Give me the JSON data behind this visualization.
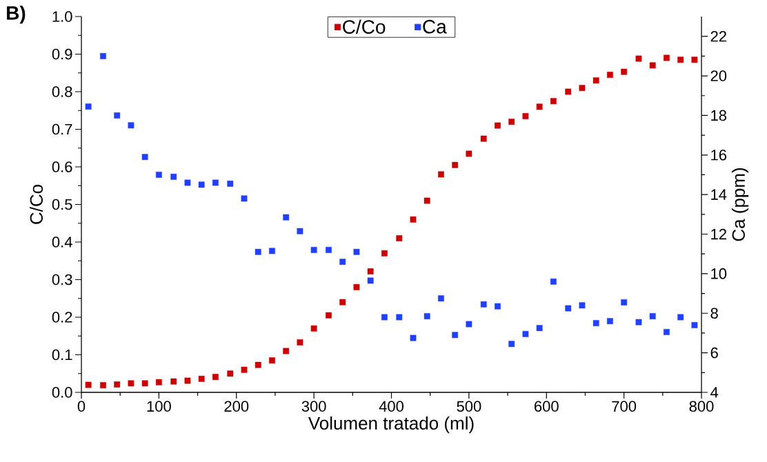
{
  "chart_data": {
    "type": "scatter",
    "xlabel": "Volumen tratado (ml)",
    "ylabel": "C/Co",
    "y2label": "Ca (ppm)",
    "annotations": [
      "B)"
    ],
    "x": [
      9,
      28,
      46,
      64,
      82,
      100,
      119,
      137,
      155,
      173,
      192,
      210,
      228,
      246,
      264,
      282,
      300,
      319,
      337,
      355,
      373,
      391,
      410,
      428,
      446,
      464,
      482,
      500,
      519,
      537,
      555,
      573,
      591,
      609,
      628,
      646,
      664,
      682,
      700,
      719,
      737,
      755,
      773,
      791
    ],
    "series": [
      {
        "name": "C/Co",
        "color": "#cc0000",
        "values": [
          0.02,
          0.019,
          0.021,
          0.024,
          0.024,
          0.027,
          0.029,
          0.031,
          0.036,
          0.041,
          0.05,
          0.06,
          0.073,
          0.085,
          0.11,
          0.133,
          0.17,
          0.205,
          0.24,
          0.28,
          0.322,
          0.37,
          0.41,
          0.46,
          0.51,
          0.58,
          0.605,
          0.635,
          0.675,
          0.71,
          0.72,
          0.735,
          0.76,
          0.775,
          0.8,
          0.81,
          0.83,
          0.845,
          0.853,
          0.888,
          0.87,
          0.89,
          0.885,
          0.885
        ]
      },
      {
        "name": "Ca",
        "color": "#2040ff",
        "axis": "y2",
        "values": [
          18.45,
          21.0,
          18.0,
          17.5,
          15.9,
          15.0,
          14.9,
          14.6,
          14.5,
          14.6,
          14.55,
          13.8,
          11.1,
          11.15,
          12.85,
          12.15,
          11.2,
          11.2,
          10.6,
          11.1,
          9.65,
          7.8,
          7.8,
          6.75,
          7.85,
          8.75,
          6.9,
          7.45,
          8.45,
          8.35,
          6.45,
          6.95,
          7.25,
          9.6,
          8.25,
          8.4,
          7.5,
          7.6,
          8.55,
          7.55,
          7.85,
          7.05,
          7.8,
          7.4
        ]
      }
    ],
    "marker": "square",
    "legend": "top",
    "xlim": [
      0,
      800
    ],
    "xticks": [
      0,
      100,
      200,
      300,
      400,
      500,
      600,
      700,
      800
    ],
    "ylim": [
      0,
      1.0
    ],
    "yticks": [
      {
        "value": 0,
        "label": "0.0"
      },
      {
        "value": 0.1,
        "label": "0.1"
      },
      {
        "value": 0.2,
        "label": "0.2"
      },
      {
        "value": 0.3,
        "label": "0.3"
      },
      {
        "value": 0.4,
        "label": "0.4"
      },
      {
        "value": 0.5,
        "label": "0.5"
      },
      {
        "value": 0.6,
        "label": "0.6"
      },
      {
        "value": 0.7,
        "label": "0.7"
      },
      {
        "value": 0.8,
        "label": "0.8"
      },
      {
        "value": 0.9,
        "label": "0.9"
      },
      {
        "value": 1.0,
        "label": "1.0"
      }
    ],
    "y2lim": [
      4,
      23
    ],
    "y2ticks": [
      4,
      6,
      8,
      10,
      12,
      14,
      16,
      18,
      20,
      22
    ]
  }
}
